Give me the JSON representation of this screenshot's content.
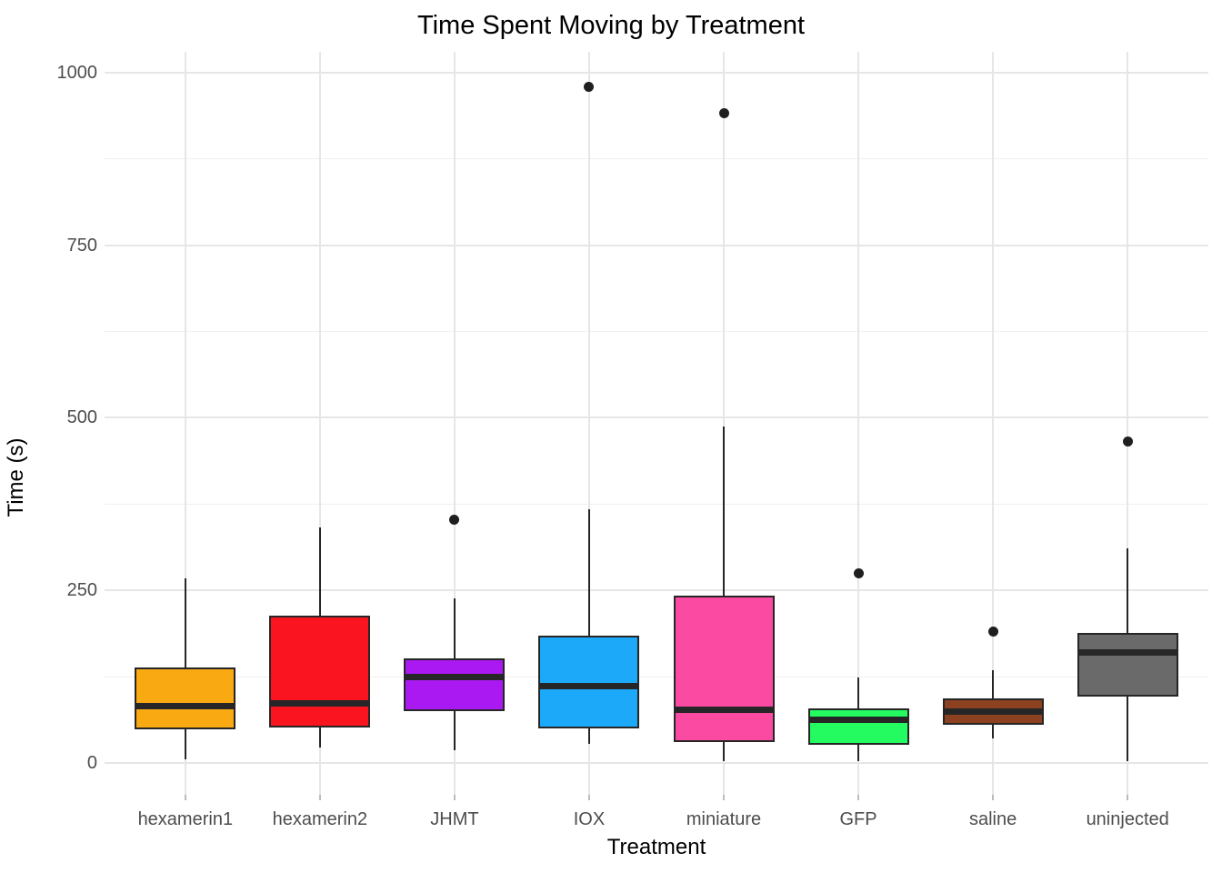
{
  "title": "Time Spent Moving by Treatment",
  "chart_data": {
    "type": "boxplot",
    "title": "Time Spent Moving by Treatment",
    "xlabel": "Treatment",
    "ylabel": "Time (s)",
    "ylim": [
      -46,
      1030
    ],
    "y_major_ticks": [
      0,
      250,
      500,
      750,
      1000
    ],
    "y_minor_gridlines": [
      125,
      375,
      625,
      875
    ],
    "grid": "on",
    "legend": "none",
    "categories": [
      "hexamerin1",
      "hexamerin2",
      "JHMT",
      "IOX",
      "miniature",
      "GFP",
      "saline",
      "uninjected"
    ],
    "series": [
      {
        "name": "hexamerin1",
        "color": "#F9A912",
        "whisker_low": 5,
        "q1": 49,
        "median": 82,
        "q3": 138,
        "whisker_high": 267,
        "outliers": []
      },
      {
        "name": "hexamerin2",
        "color": "#FA1420",
        "whisker_low": 22,
        "q1": 51,
        "median": 86,
        "q3": 214,
        "whisker_high": 341,
        "outliers": []
      },
      {
        "name": "JHMT",
        "color": "#AA18F2",
        "whisker_low": 18,
        "q1": 75,
        "median": 124,
        "q3": 151,
        "whisker_high": 239,
        "outliers": [
          352
        ]
      },
      {
        "name": "IOX",
        "color": "#1CA9FA",
        "whisker_low": 28,
        "q1": 50,
        "median": 112,
        "q3": 185,
        "whisker_high": 368,
        "outliers": [
          979
        ]
      },
      {
        "name": "miniature",
        "color": "#FB4AA2",
        "whisker_low": 3,
        "q1": 30,
        "median": 77,
        "q3": 242,
        "whisker_high": 487,
        "outliers": [
          941
        ]
      },
      {
        "name": "GFP",
        "color": "#24FB61",
        "whisker_low": 3,
        "q1": 27,
        "median": 63,
        "q3": 79,
        "whisker_high": 124,
        "outliers": [
          275
        ]
      },
      {
        "name": "saline",
        "color": "#8C4220",
        "whisker_low": 36,
        "q1": 55,
        "median": 74,
        "q3": 93,
        "whisker_high": 135,
        "outliers": [
          190
        ]
      },
      {
        "name": "uninjected",
        "color": "#6A6A6A",
        "whisker_low": 3,
        "q1": 96,
        "median": 160,
        "q3": 188,
        "whisker_high": 311,
        "outliers": [
          466
        ]
      }
    ],
    "style": {
      "background": "#FFFFFF",
      "major_gridline_color": "#E6E6E6",
      "minor_gridline_color": "#F0F0F0",
      "vertical_gridline_color": "#E6E6E6",
      "box_border_color": "#262626",
      "median_color": "#262626",
      "whisker_color": "#262626",
      "outlier_color": "#1F1F1F",
      "axis_tick_color": "#BBBBBB",
      "tick_label_color": "#4D4D4D",
      "box_width_fraction": 0.75
    }
  }
}
